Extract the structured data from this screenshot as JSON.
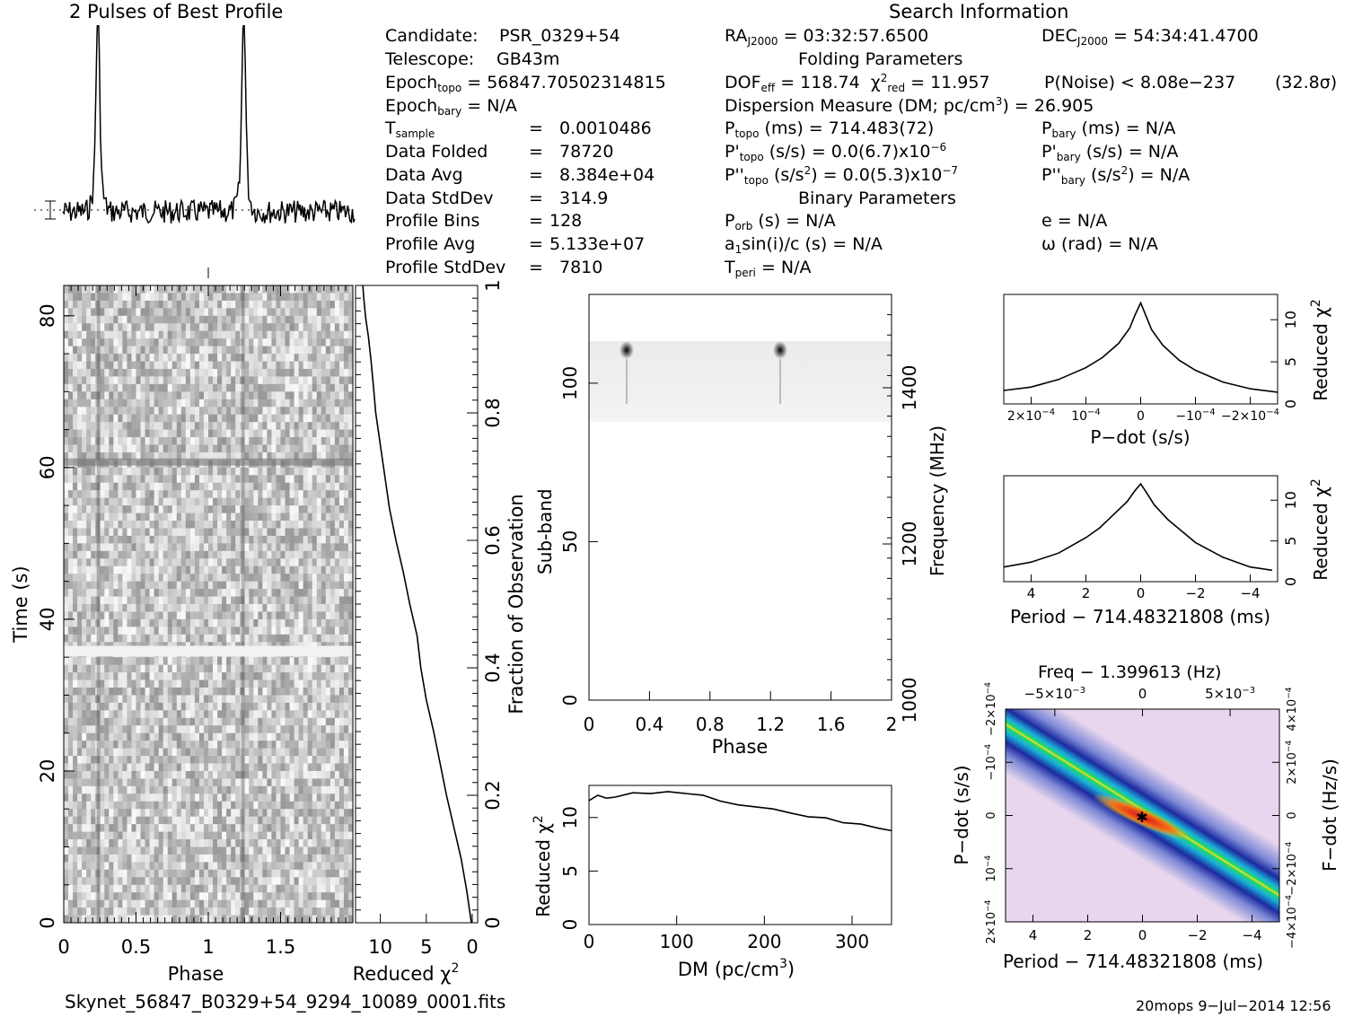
{
  "profile": {
    "title": "2 Pulses of Best Profile",
    "chart_data": {
      "type": "line",
      "title": "2 Pulses of Best Profile",
      "x": "phase 0-2 (two rotations)",
      "bins": 128,
      "peaks_phase": [
        0.24,
        1.24
      ],
      "notes": "normalized pulse profile, baseline with noise"
    }
  },
  "info": {
    "search_title": "Search Information",
    "candidate_label": "Candidate:",
    "candidate": "PSR_0329+54",
    "telescope_label": "Telescope:",
    "telescope": "GB43m",
    "epoch_topo_label": "Epoch",
    "epoch_topo_sub": "topo",
    "epoch_topo": "= 56847.70502314815",
    "epoch_bary_label": "Epoch",
    "epoch_bary_sub": "bary",
    "epoch_bary": "= N/A",
    "tsample_label": "T",
    "tsample_sub": "sample",
    "tsample": "0.0010486",
    "data_folded_label": "Data Folded",
    "data_folded": "78720",
    "data_avg_label": "Data Avg",
    "data_avg": "8.384e+04",
    "data_std_label": "Data StdDev",
    "data_std": "314.9",
    "profile_bins_label": "Profile Bins",
    "profile_bins": "128",
    "profile_avg_label": "Profile Avg",
    "profile_avg": "5.133e+07",
    "profile_std_label": "Profile StdDev",
    "profile_std": "7810",
    "eq": "=",
    "ra_label": "RA",
    "ra_sub": "J2000",
    "ra": "= 03:32:57.6500",
    "dec_label": "DEC",
    "dec_sub": "J2000",
    "dec": "= 54:34:41.4700",
    "folding_title": "Folding Parameters",
    "dof_label": "DOF",
    "dof_sub": "eff",
    "dof": "= 118.74",
    "chi_label": "χ",
    "chi_sup": "2",
    "chi_sub": "red",
    "chi": "= 11.957",
    "pnoise": "P(Noise) < 8.08e−237",
    "sigma": "(32.8σ)",
    "dm_text": "Dispersion Measure (DM; pc/cm",
    "dm_sup": "3",
    "dm_value": ") = 26.905",
    "ptopo_label": "P",
    "ptopo_sub": "topo",
    "ptopo": "(ms) =  714.483(72)",
    "pbary_label": "P",
    "pbary_sub": "bary",
    "pbary": "(ms) = N/A",
    "pdtopo_label": "P'",
    "pdtopo_sub": "topo",
    "pdtopo": "(s/s) = 0.0(6.7)x10",
    "pdtopo_sup": "−6",
    "pdbary_label": "P'",
    "pdbary_sub": "bary",
    "pdbary": "(s/s) = N/A",
    "pddtopo_label": "P''",
    "pddtopo_sub": "topo",
    "pddtopo": "(s/s",
    "pddtopo_sup": "2",
    "pddtopo_rest": ") = 0.0(5.3)x10",
    "pddtopo_sup2": "−7",
    "pddbary_label": "P''",
    "pddbary_sub": "bary",
    "pddbary": "(s/s",
    "pddbary_sup": "2",
    "pddbary_rest": ") = N/A",
    "binary_title": "Binary Parameters",
    "porb_label": "P",
    "porb_sub": "orb",
    "porb": "(s) = N/A",
    "a1_label": "a",
    "a1_sub": "1",
    "a1": "sin(i)/c (s) = N/A",
    "tperi_label": "T",
    "tperi_sub": "peri",
    "tperi": "= N/A",
    "e": "e = N/A",
    "omega": "ω (rad) = N/A"
  },
  "time_phase": {
    "chart_data": {
      "type": "heatmap",
      "xlabel": "Phase",
      "ylabel": "Time (s)",
      "xlim": [
        0,
        2
      ],
      "ylim": [
        0,
        84
      ],
      "xticks": [
        "0",
        "0.5",
        "1",
        "1.5"
      ],
      "yticks": [
        "0",
        "20",
        "40",
        "60",
        "80"
      ]
    }
  },
  "time_chi": {
    "chart_data": {
      "type": "line",
      "xlabel": "Reduced χ",
      "xlabel_sup": "2",
      "ylabel": "Fraction of Observation",
      "xticks": [
        "10",
        "5",
        "0"
      ],
      "yticks": [
        "0",
        "0.2",
        "0.4",
        "0.6",
        "0.8",
        "1"
      ],
      "x": [
        0.1,
        0.6,
        1.2,
        2.0,
        2.8,
        3.5,
        4.2,
        5.0,
        5.6,
        6.0,
        6.8,
        7.5,
        8.3,
        9.0,
        9.5,
        10.0,
        10.5,
        10.8,
        11.0,
        11.3,
        11.6,
        11.8,
        11.9
      ],
      "y": [
        0.0,
        0.05,
        0.1,
        0.15,
        0.2,
        0.25,
        0.3,
        0.35,
        0.4,
        0.45,
        0.5,
        0.55,
        0.6,
        0.65,
        0.7,
        0.75,
        0.8,
        0.85,
        0.88,
        0.92,
        0.95,
        0.98,
        1.0
      ]
    }
  },
  "subband": {
    "chart_data": {
      "type": "heatmap",
      "xlabel": "Phase",
      "ylabel": "Sub-band",
      "ylabel_right": "Frequency (MHz)",
      "xticks": [
        "0",
        "0.4",
        "0.8",
        "1.2",
        "1.6",
        "2"
      ],
      "yticks": [
        "0",
        "50",
        "100"
      ],
      "yticks_right": [
        "1000",
        "1200",
        "1400"
      ]
    }
  },
  "dm_chi": {
    "chart_data": {
      "type": "line",
      "xlabel": "DM (pc/cm",
      "xlabel_sup": "3",
      "xlabel_close": ")",
      "ylabel": "Reduced χ",
      "ylabel_sup": "2",
      "xlim": [
        0,
        345
      ],
      "ylim": [
        0,
        13
      ],
      "xticks": [
        "0",
        "100",
        "200",
        "300"
      ],
      "yticks": [
        "0",
        "5",
        "10"
      ],
      "x": [
        0,
        10,
        20,
        30,
        50,
        70,
        90,
        110,
        130,
        150,
        170,
        190,
        210,
        230,
        250,
        270,
        290,
        310,
        330,
        345
      ],
      "y": [
        11.6,
        12.1,
        11.8,
        12.0,
        12.3,
        12.2,
        12.4,
        12.3,
        12.0,
        11.6,
        11.3,
        11.0,
        10.8,
        10.5,
        10.2,
        9.9,
        9.6,
        9.3,
        9.0,
        8.8
      ]
    }
  },
  "pdot_chi": {
    "chart_data": {
      "type": "line",
      "xlabel": "P−dot (s/s)",
      "ylabel": "Reduced χ",
      "ylabel_sup": "2",
      "xticks": [
        "2×10",
        "10",
        "0",
        "−10",
        "−2×10"
      ],
      "xtick_sup": "−4",
      "yticks": [
        "0",
        "5",
        "10"
      ],
      "x": [
        2.5,
        2.0,
        1.5,
        1.0,
        0.7,
        0.4,
        0.2,
        0.1,
        0,
        -0.1,
        -0.2,
        -0.4,
        -0.7,
        -1.0,
        -1.5,
        -2.0,
        -2.5
      ],
      "y": [
        1.6,
        2.0,
        2.9,
        4.3,
        5.5,
        7.2,
        9.0,
        10.6,
        12.0,
        10.4,
        8.8,
        7.0,
        5.2,
        4.0,
        2.6,
        1.8,
        1.4
      ]
    }
  },
  "period_chi": {
    "chart_data": {
      "type": "line",
      "xlabel": "Period − 714.48321808 (ms)",
      "ylabel": "Reduced χ",
      "ylabel_sup": "2",
      "xticks": [
        "4",
        "2",
        "0",
        "−2",
        "−4"
      ],
      "yticks": [
        "0",
        "5",
        "10"
      ],
      "x": [
        5,
        4,
        3,
        2,
        1.5,
        1,
        0.5,
        0.2,
        0,
        -0.2,
        -0.5,
        -1,
        -1.5,
        -2,
        -3,
        -4,
        -4.8
      ],
      "y": [
        1.8,
        2.4,
        3.5,
        5.4,
        6.6,
        8.2,
        9.8,
        11.2,
        12.0,
        11.0,
        9.4,
        7.6,
        6.2,
        4.8,
        3.0,
        1.8,
        1.4
      ]
    }
  },
  "pdot_period": {
    "chart_data": {
      "type": "heatmap",
      "title": "Freq − 1.399613 (Hz)",
      "xlabel": "Period − 714.48321808 (ms)",
      "ylabel": "P−dot (s/s)",
      "ylabel_right": "F−dot (Hz/s)",
      "xticks": [
        "4",
        "2",
        "0",
        "−2",
        "−4"
      ],
      "top_ticks": [
        "−5×10",
        "0",
        "5×10"
      ],
      "top_sup": "−3",
      "yticks": [
        "2×10",
        "10",
        "0",
        "−10",
        "−2×10"
      ],
      "ytick_sup": "−4",
      "yticks_right": [
        "−4×10",
        "−2×10",
        "0",
        "2×10",
        "4×10"
      ],
      "ytick_right_sup": "−4"
    }
  },
  "footer": {
    "filename": "Skynet_56847_B0329+54_9294_10089_0001.fits",
    "stamp": "20mops   9−Jul−2014  12:56"
  }
}
